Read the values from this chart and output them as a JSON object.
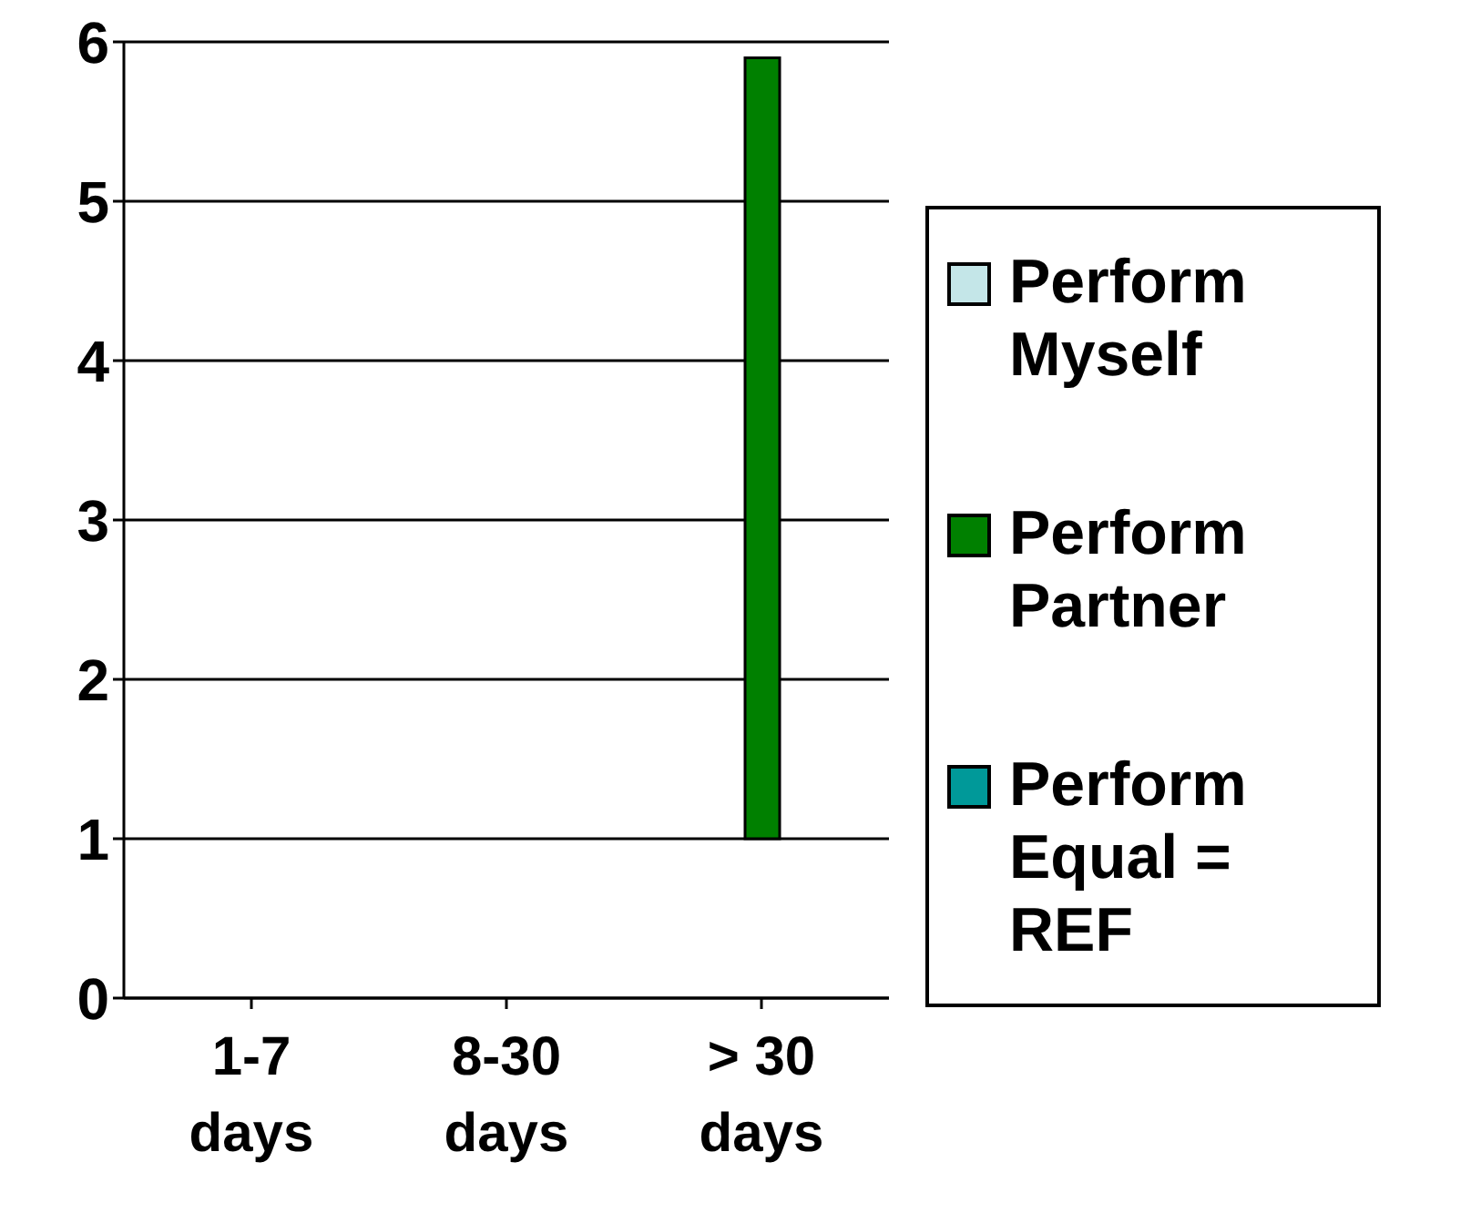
{
  "chart_data": {
    "type": "bar",
    "categories": [
      "1-7 days",
      "8-30 days",
      "> 30 days"
    ],
    "series": [
      {
        "name": "Perform Myself",
        "color": "#c4e6e8",
        "values": [
          null,
          null,
          null
        ]
      },
      {
        "name": "Perform Partner",
        "color": "#008000",
        "values": [
          null,
          null,
          4.9
        ],
        "base": [
          null,
          null,
          1
        ]
      },
      {
        "name": "Perform Equal = REF",
        "color": "#009999",
        "values": [
          null,
          null,
          null
        ]
      }
    ],
    "ylim": [
      0,
      6
    ],
    "yticks": [
      0,
      1,
      2,
      3,
      4,
      5,
      6
    ],
    "grid": "y",
    "legend": "right"
  }
}
